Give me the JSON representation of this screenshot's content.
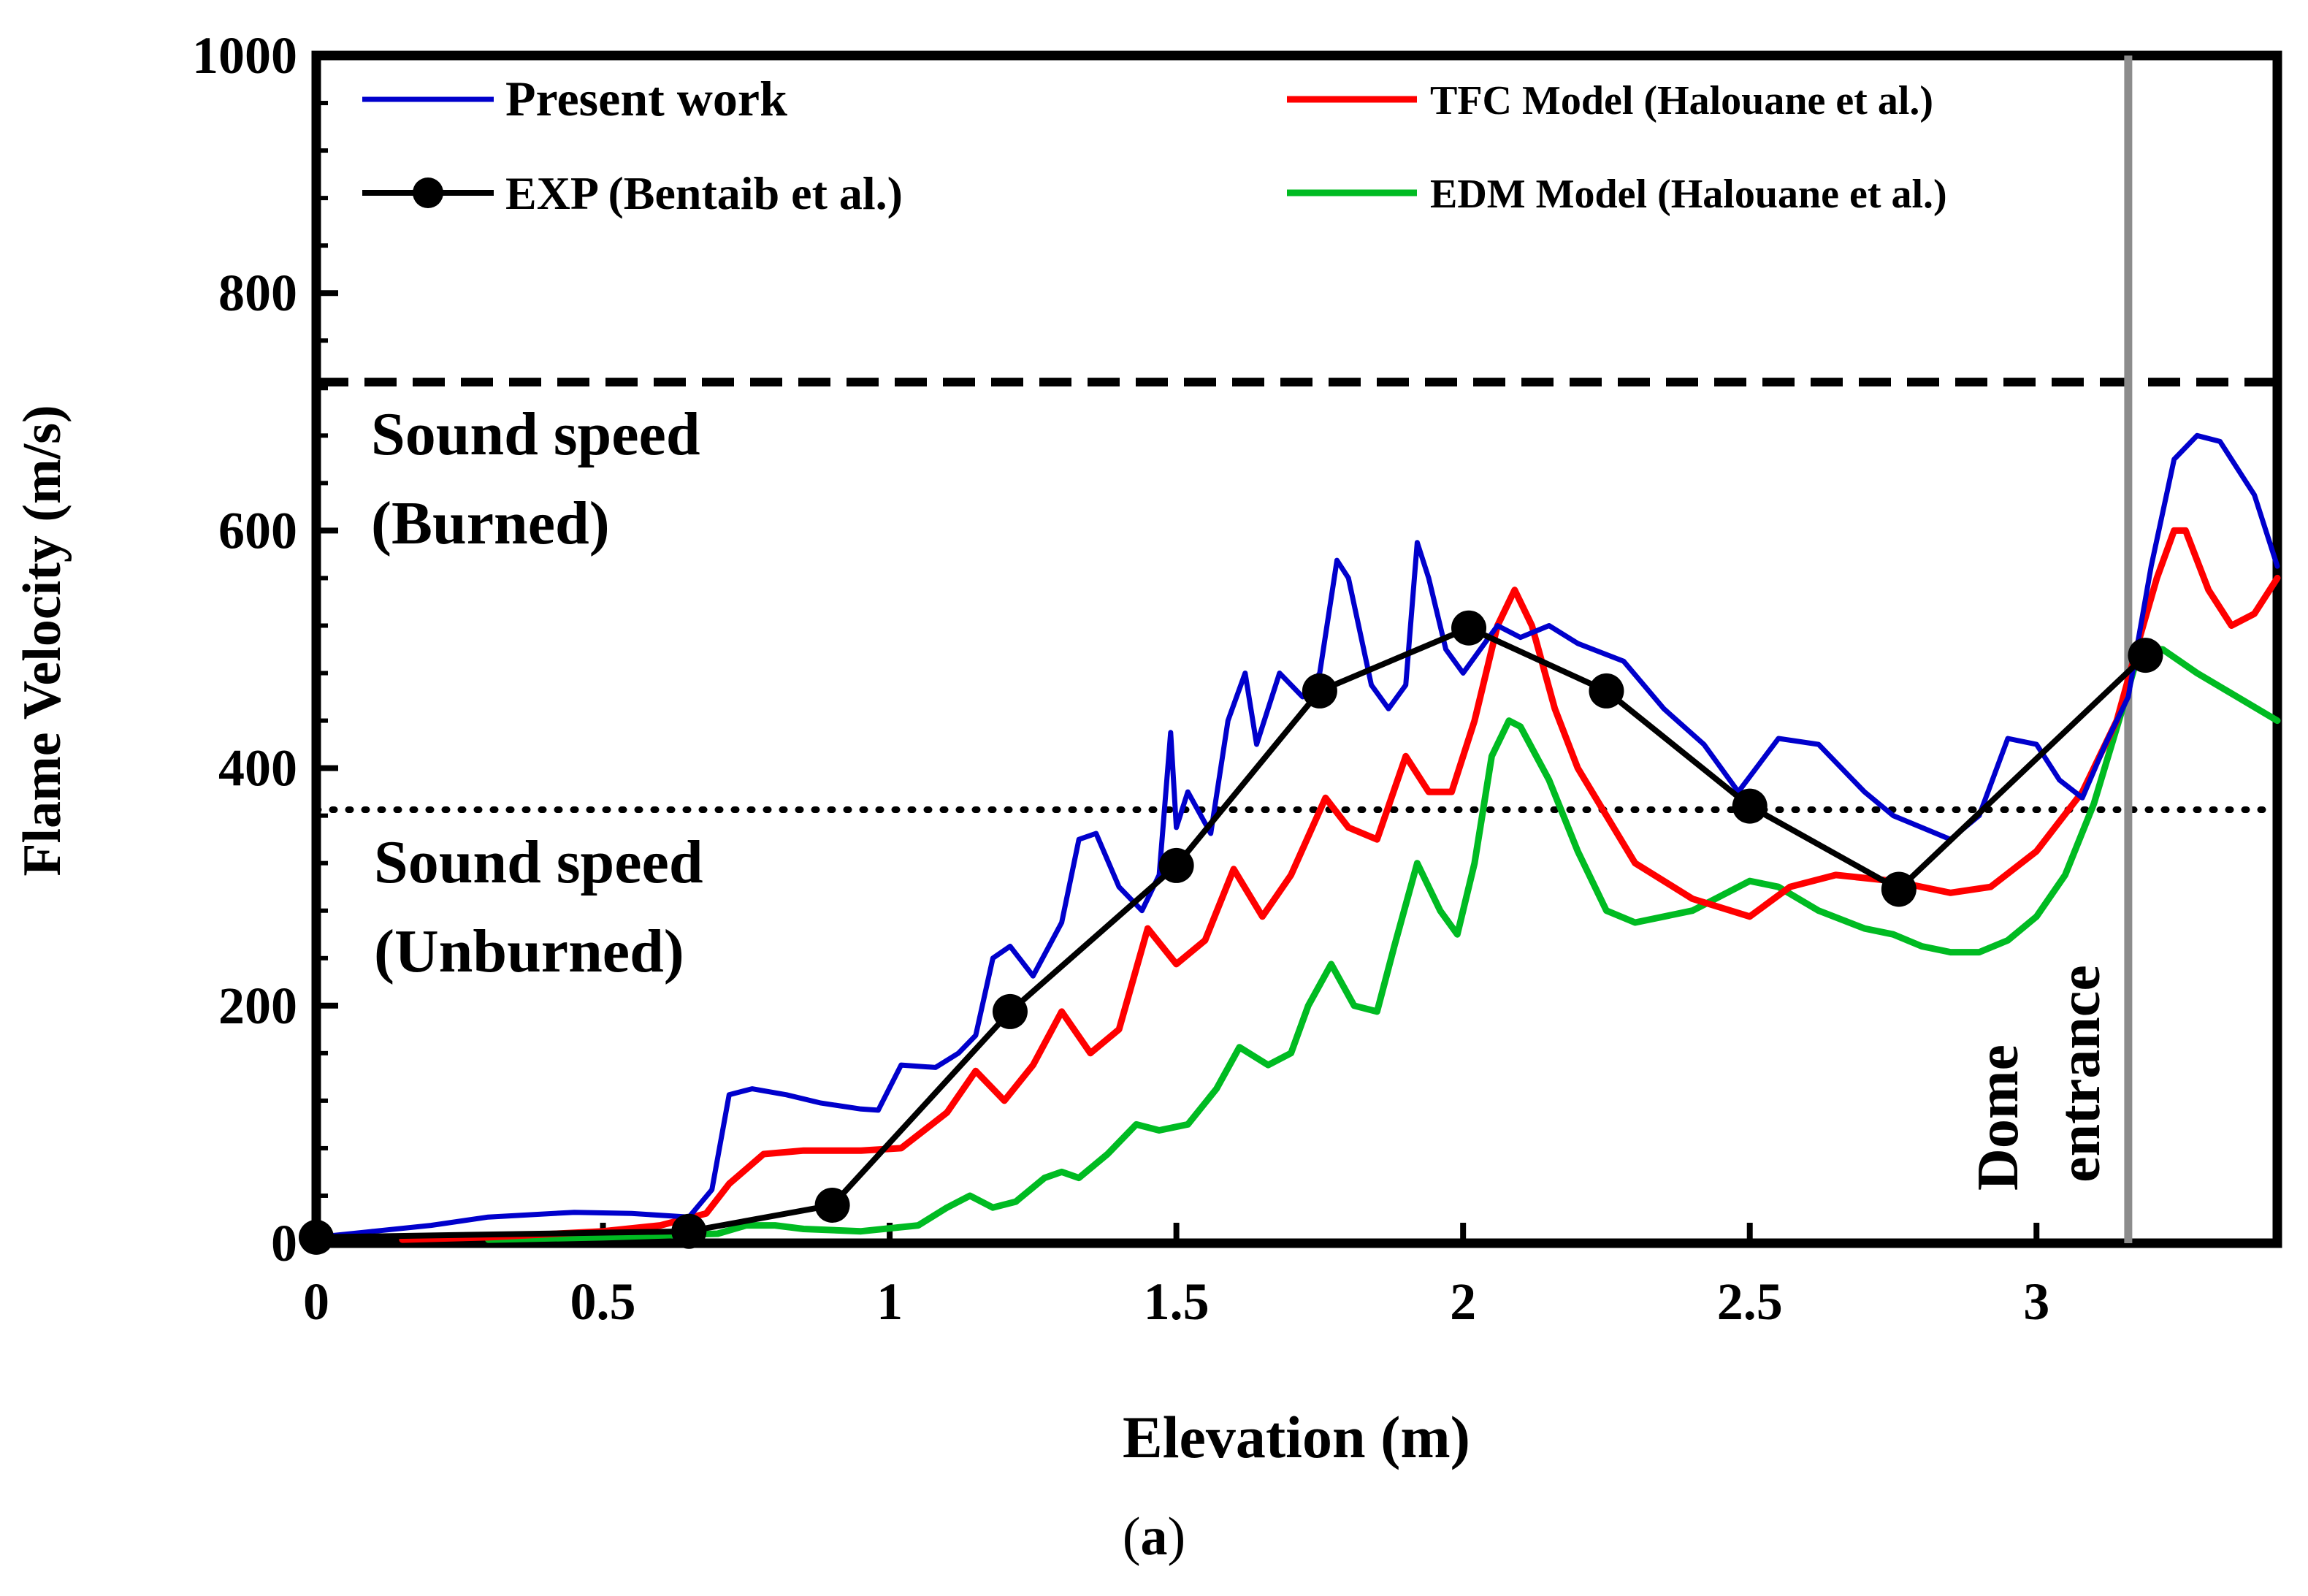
{
  "chart_data": {
    "type": "line",
    "xlabel": "Elevation (m)",
    "ylabel": "Flame Velocity (m/s)",
    "xlim": [
      0,
      3.42
    ],
    "ylim": [
      0,
      1000
    ],
    "x_ticks": [
      0,
      0.5,
      1,
      1.5,
      2,
      2.5,
      3
    ],
    "x_tick_labels": [
      "0",
      "0.5",
      "1",
      "1.5",
      "2",
      "2.5",
      "3"
    ],
    "y_ticks": [
      0,
      200,
      400,
      600,
      800,
      1000
    ],
    "y_tick_labels": [
      "0",
      "200",
      "400",
      "600",
      "800",
      "1000"
    ],
    "grid": false,
    "legend_position": "top",
    "series": [
      {
        "name": "Present work",
        "color": "#0000cc",
        "style": "solid-jagged",
        "x": [
          0,
          0.1,
          0.2,
          0.3,
          0.45,
          0.55,
          0.65,
          0.69,
          0.72,
          0.76,
          0.82,
          0.88,
          0.95,
          0.98,
          1.02,
          1.08,
          1.12,
          1.15,
          1.18,
          1.21,
          1.25,
          1.3,
          1.33,
          1.36,
          1.4,
          1.44,
          1.47,
          1.49,
          1.5,
          1.52,
          1.56,
          1.59,
          1.62,
          1.64,
          1.68,
          1.72,
          1.75,
          1.78,
          1.8,
          1.84,
          1.87,
          1.9,
          1.92,
          1.94,
          1.97,
          2.0,
          2.03,
          2.06,
          2.1,
          2.15,
          2.2,
          2.28,
          2.35,
          2.42,
          2.48,
          2.55,
          2.62,
          2.7,
          2.75,
          2.8,
          2.85,
          2.9,
          2.95,
          3.0,
          3.04,
          3.08,
          3.12,
          3.16,
          3.2,
          3.24,
          3.28,
          3.32,
          3.38,
          3.42
        ],
        "values": [
          5,
          10,
          15,
          22,
          26,
          25,
          22,
          45,
          125,
          130,
          125,
          118,
          113,
          112,
          150,
          148,
          160,
          175,
          240,
          250,
          225,
          270,
          340,
          345,
          300,
          280,
          310,
          430,
          350,
          380,
          345,
          440,
          480,
          420,
          480,
          460,
          480,
          575,
          560,
          470,
          450,
          470,
          590,
          560,
          500,
          480,
          500,
          520,
          510,
          520,
          505,
          490,
          450,
          420,
          380,
          425,
          420,
          380,
          360,
          350,
          340,
          360,
          425,
          420,
          390,
          375,
          420,
          460,
          570,
          660,
          680,
          675,
          630,
          570
        ]
      },
      {
        "name": "TFC Model (Halouane et al.)",
        "color": "#ff0000",
        "style": "solid",
        "x": [
          0.15,
          0.3,
          0.5,
          0.6,
          0.68,
          0.72,
          0.78,
          0.85,
          0.95,
          1.02,
          1.1,
          1.15,
          1.2,
          1.25,
          1.3,
          1.35,
          1.4,
          1.45,
          1.5,
          1.55,
          1.6,
          1.65,
          1.7,
          1.76,
          1.8,
          1.85,
          1.9,
          1.94,
          1.98,
          2.02,
          2.06,
          2.09,
          2.12,
          2.16,
          2.2,
          2.3,
          2.4,
          2.5,
          2.57,
          2.65,
          2.75,
          2.85,
          2.92,
          3.0,
          3.08,
          3.14,
          3.18,
          3.21,
          3.24,
          3.26,
          3.3,
          3.34,
          3.38,
          3.42
        ],
        "values": [
          3,
          5,
          10,
          15,
          25,
          50,
          75,
          78,
          78,
          80,
          110,
          145,
          120,
          150,
          195,
          160,
          180,
          265,
          235,
          255,
          315,
          275,
          310,
          375,
          350,
          340,
          410,
          380,
          380,
          440,
          520,
          550,
          520,
          450,
          400,
          320,
          290,
          275,
          300,
          310,
          305,
          295,
          300,
          330,
          380,
          440,
          510,
          560,
          600,
          600,
          550,
          520,
          530,
          560
        ]
      },
      {
        "name": "EDM Model (Halouane et al.)",
        "color": "#00bb22",
        "style": "solid",
        "x": [
          0.3,
          0.5,
          0.7,
          0.75,
          0.8,
          0.85,
          0.95,
          1.05,
          1.1,
          1.14,
          1.18,
          1.22,
          1.27,
          1.3,
          1.33,
          1.38,
          1.43,
          1.47,
          1.52,
          1.57,
          1.61,
          1.66,
          1.7,
          1.73,
          1.77,
          1.81,
          1.85,
          1.88,
          1.92,
          1.96,
          1.99,
          2.02,
          2.05,
          2.08,
          2.1,
          2.15,
          2.2,
          2.25,
          2.3,
          2.4,
          2.5,
          2.55,
          2.62,
          2.7,
          2.75,
          2.8,
          2.85,
          2.9,
          2.95,
          3.0,
          3.05,
          3.1,
          3.15,
          3.18,
          3.22,
          3.28,
          3.35,
          3.42
        ],
        "values": [
          3,
          5,
          8,
          15,
          15,
          12,
          10,
          15,
          30,
          40,
          30,
          35,
          55,
          60,
          55,
          75,
          100,
          95,
          100,
          130,
          165,
          150,
          160,
          200,
          235,
          200,
          195,
          250,
          320,
          280,
          260,
          320,
          410,
          440,
          435,
          390,
          330,
          280,
          270,
          280,
          305,
          300,
          280,
          265,
          260,
          250,
          245,
          245,
          255,
          275,
          310,
          370,
          450,
          500,
          500,
          480,
          460,
          440
        ]
      },
      {
        "name": "EXP (Bentaib et al.)",
        "color": "#000000",
        "style": "solid-with-markers",
        "x": [
          0,
          0.65,
          0.9,
          1.21,
          1.5,
          1.75,
          2.01,
          2.25,
          2.5,
          2.76,
          3.19
        ],
        "values": [
          5,
          10,
          32,
          195,
          318,
          465,
          518,
          465,
          368,
          298,
          495
        ]
      }
    ],
    "reference_lines": [
      {
        "name": "Sound speed burned",
        "orientation": "horizontal",
        "value": 725,
        "style": "dashed",
        "label_line1": "Sound speed",
        "label_line2": "(Burned)"
      },
      {
        "name": "Sound speed unburned",
        "orientation": "horizontal",
        "value": 365,
        "style": "dotted",
        "label_line1": "Sound speed",
        "label_line2": "(Unburned)"
      },
      {
        "name": "Dome entrance",
        "orientation": "vertical",
        "value": 3.16,
        "style": "solid-gray",
        "label_line1": "Dome",
        "label_line2": "entrance"
      }
    ]
  },
  "caption": {
    "open": "(",
    "letter": "a",
    "close": ")"
  },
  "colors": {
    "present_work": "#0000cc",
    "tfc": "#ff0000",
    "edm": "#00bb22",
    "exp": "#000000",
    "dome_line": "#8c8c8c"
  }
}
